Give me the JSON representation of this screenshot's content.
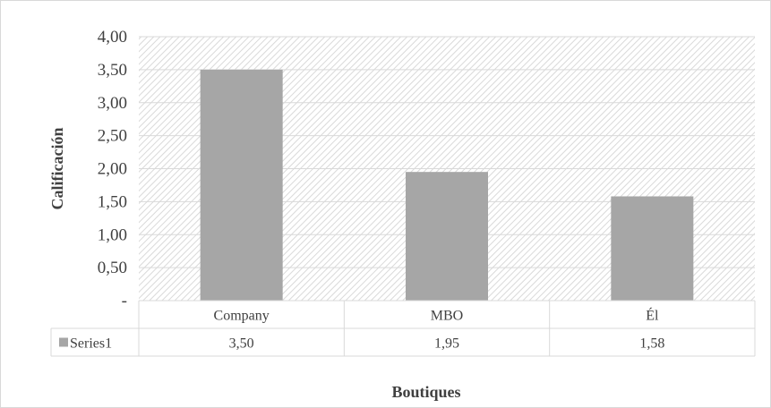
{
  "chart_data": {
    "type": "bar",
    "categories": [
      "Company",
      "MBO",
      "Él"
    ],
    "series": [
      {
        "name": "Series1",
        "values": [
          3.5,
          1.95,
          1.58
        ],
        "labels": [
          "3,50",
          "1,95",
          "1,58"
        ]
      }
    ],
    "xlabel": "Boutiques",
    "ylabel": "Calificación",
    "ylim": [
      0,
      4
    ],
    "yticks": [
      0,
      0.5,
      1,
      1.5,
      2,
      2.5,
      3,
      3.5,
      4
    ],
    "ytick_labels": [
      "-",
      "0,50",
      "1,00",
      "1,50",
      "2,00",
      "2,50",
      "3,00",
      "3,50",
      "4,00"
    ],
    "grid": true,
    "plot_fill": "diagonal-hatch",
    "data_table": true,
    "colors": {
      "bar": "#a6a6a6",
      "grid": "#d9d9d9",
      "hatch": "#d9d9d9",
      "text": "#404040"
    }
  }
}
